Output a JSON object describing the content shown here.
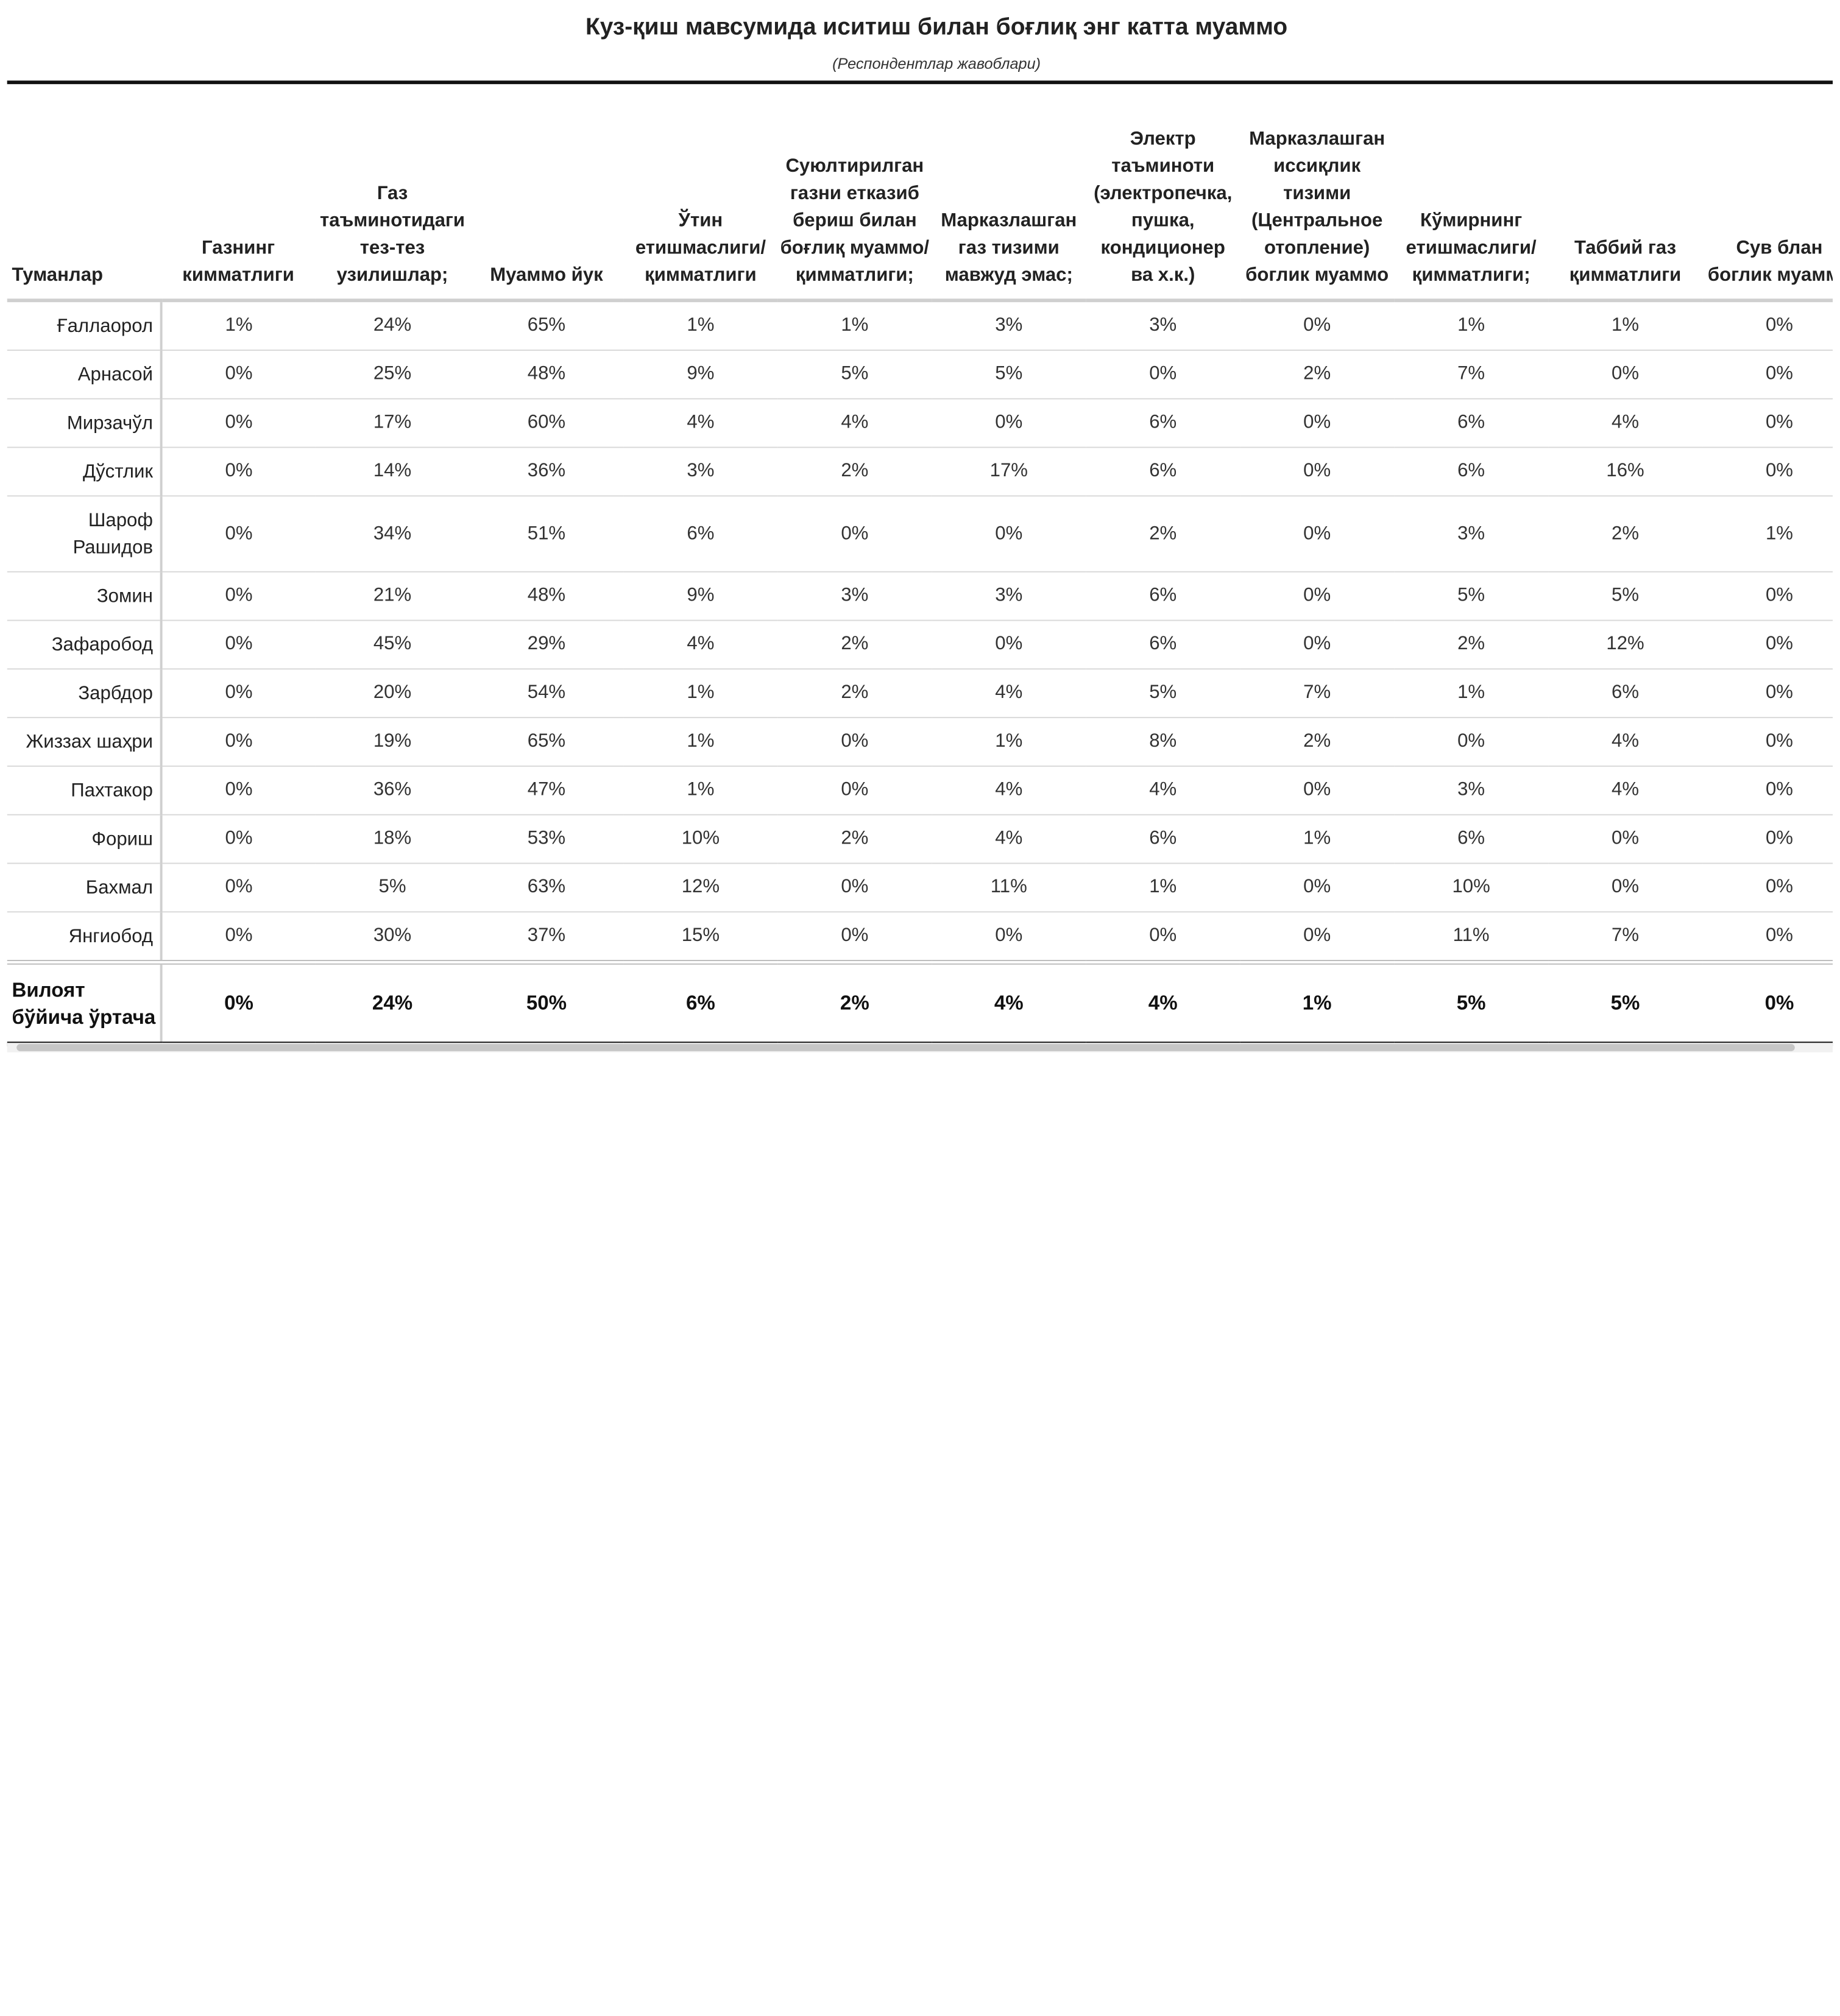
{
  "title": "Куз-қиш мавсумида иситиш билан боғлиқ энг катта муаммо",
  "subtitle": "(Респондентлар жавоблари)",
  "table": {
    "columns": [
      "Туманлар",
      "Газнинг кимматлиги",
      "Газ таъминотидаги тез-тез узилишлар;",
      "Муаммо йук",
      "Ўтин етишмаслиги/ қимматлиги",
      "Суюлтирилган газни етказиб бериш билан боғлиқ муаммо/ қимматлиги;",
      "Марказлашган газ тизими мавжуд эмас;",
      "Электр таъминоти (электропечка, пушка, кондиционер ва х.к.)",
      "Марказлашган иссиқлик тизими (Центральное отопление) боглик муаммо",
      "Кўмирнинг етишмаслиги/ қимматлиги;",
      "Таббий газ қимматлиги",
      "Сув блан боглик муаммо"
    ],
    "rows": [
      {
        "district": "Ғаллаорол",
        "values": [
          "1%",
          "24%",
          "65%",
          "1%",
          "1%",
          "3%",
          "3%",
          "0%",
          "1%",
          "1%",
          "0%"
        ]
      },
      {
        "district": "Арнасой",
        "values": [
          "0%",
          "25%",
          "48%",
          "9%",
          "5%",
          "5%",
          "0%",
          "2%",
          "7%",
          "0%",
          "0%"
        ]
      },
      {
        "district": "Мирзачўл",
        "values": [
          "0%",
          "17%",
          "60%",
          "4%",
          "4%",
          "0%",
          "6%",
          "0%",
          "6%",
          "4%",
          "0%"
        ]
      },
      {
        "district": "Дўстлик",
        "values": [
          "0%",
          "14%",
          "36%",
          "3%",
          "2%",
          "17%",
          "6%",
          "0%",
          "6%",
          "16%",
          "0%"
        ]
      },
      {
        "district": "Шароф Рашидов",
        "values": [
          "0%",
          "34%",
          "51%",
          "6%",
          "0%",
          "0%",
          "2%",
          "0%",
          "3%",
          "2%",
          "1%"
        ]
      },
      {
        "district": "Зомин",
        "values": [
          "0%",
          "21%",
          "48%",
          "9%",
          "3%",
          "3%",
          "6%",
          "0%",
          "5%",
          "5%",
          "0%"
        ]
      },
      {
        "district": "Зафаробод",
        "values": [
          "0%",
          "45%",
          "29%",
          "4%",
          "2%",
          "0%",
          "6%",
          "0%",
          "2%",
          "12%",
          "0%"
        ]
      },
      {
        "district": "Зарбдор",
        "values": [
          "0%",
          "20%",
          "54%",
          "1%",
          "2%",
          "4%",
          "5%",
          "7%",
          "1%",
          "6%",
          "0%"
        ]
      },
      {
        "district": "Жиззах шаҳри",
        "values": [
          "0%",
          "19%",
          "65%",
          "1%",
          "0%",
          "1%",
          "8%",
          "2%",
          "0%",
          "4%",
          "0%"
        ]
      },
      {
        "district": "Пахтакор",
        "values": [
          "0%",
          "36%",
          "47%",
          "1%",
          "0%",
          "4%",
          "4%",
          "0%",
          "3%",
          "4%",
          "0%"
        ]
      },
      {
        "district": "Фориш",
        "values": [
          "0%",
          "18%",
          "53%",
          "10%",
          "2%",
          "4%",
          "6%",
          "1%",
          "6%",
          "0%",
          "0%"
        ]
      },
      {
        "district": "Бахмал",
        "values": [
          "0%",
          "5%",
          "63%",
          "12%",
          "0%",
          "11%",
          "1%",
          "0%",
          "10%",
          "0%",
          "0%"
        ]
      },
      {
        "district": "Янгиобод",
        "values": [
          "0%",
          "30%",
          "37%",
          "15%",
          "0%",
          "0%",
          "0%",
          "0%",
          "11%",
          "7%",
          "0%"
        ]
      }
    ],
    "total": {
      "district": "Вилоят бўйича ўртача",
      "values": [
        "0%",
        "24%",
        "50%",
        "6%",
        "2%",
        "4%",
        "4%",
        "1%",
        "5%",
        "5%",
        "0%"
      ]
    }
  }
}
